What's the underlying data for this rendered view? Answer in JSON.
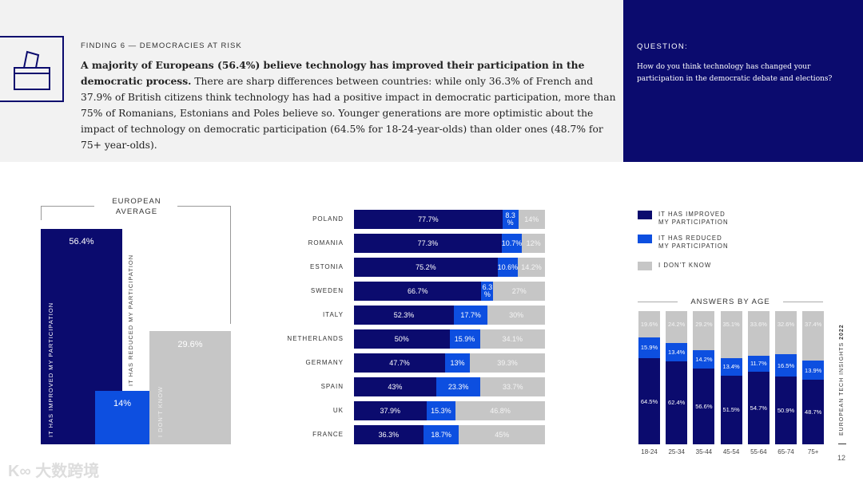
{
  "colors": {
    "improved": "#0b0b6e",
    "reduced": "#0d4fe0",
    "dont_know": "#c6c6c6"
  },
  "header": {
    "finding": "FINDING 6 — DEMOCRACIES AT RISK",
    "lead_bold": "A majority of Europeans (56.4%) believe technology has improved their participation in the democratic process.",
    "lead_rest": " There are sharp differences between countries: while only 36.3% of French and 37.9% of British citizens think technology has had a positive impact in democratic participation, more than 75% of Romanians, Estonians and Poles believe so. Younger generations are more optimistic about the impact of technology on democratic participation (64.5% for 18-24-year-olds) than older ones (48.7% for 75+ year-olds).",
    "icon": "ballot-box-icon"
  },
  "question": {
    "label": "QUESTION:",
    "text": "How do you think technology has changed your participation in the democratic debate and elections?"
  },
  "legend": [
    "IT HAS IMPROVED MY PARTICIPATION",
    "IT HAS REDUCED MY PARTICIPATION",
    "I DON'T KNOW"
  ],
  "chart_data": [
    {
      "type": "bar",
      "title": "EUROPEAN AVERAGE",
      "categories": [
        "IT HAS IMPROVED MY PARTICIPATION",
        "IT HAS REDUCED MY PARTICIPATION",
        "I DON'T KNOW"
      ],
      "values": [
        56.4,
        14,
        29.6
      ],
      "labels": [
        "56.4%",
        "14%",
        "29.6%"
      ]
    },
    {
      "type": "bar",
      "orientation": "horizontal-stacked",
      "categories": [
        "POLAND",
        "ROMANIA",
        "ESTONIA",
        "SWEDEN",
        "ITALY",
        "NETHERLANDS",
        "GERMANY",
        "SPAIN",
        "UK",
        "FRANCE"
      ],
      "series": [
        {
          "name": "IT HAS IMPROVED MY PARTICIPATION",
          "values": [
            77.7,
            77.3,
            75.2,
            66.7,
            52.3,
            50,
            47.7,
            43,
            37.9,
            36.3
          ],
          "labels": [
            "77.7%",
            "77.3%",
            "75.2%",
            "66.7%",
            "52.3%",
            "50%",
            "47.7%",
            "43%",
            "37.9%",
            "36.3%"
          ]
        },
        {
          "name": "IT HAS REDUCED MY PARTICIPATION",
          "values": [
            8.3,
            10.7,
            10.6,
            6.3,
            17.7,
            15.9,
            13,
            23.3,
            15.3,
            18.7
          ],
          "labels": [
            "8.3 %",
            "10.7%",
            "10.6%",
            "6.3 %",
            "17.7%",
            "15.9%",
            "13%",
            "23.3%",
            "15.3%",
            "18.7%"
          ]
        },
        {
          "name": "I DON'T KNOW",
          "values": [
            14,
            12,
            14.2,
            27,
            30,
            34.1,
            39.3,
            33.7,
            46.8,
            45
          ],
          "labels": [
            "14%",
            "12%",
            "14.2%",
            "27%",
            "30%",
            "34.1%",
            "39.3%",
            "33.7%",
            "46.8%",
            "45%"
          ]
        }
      ]
    },
    {
      "type": "bar",
      "orientation": "vertical-stacked",
      "title": "ANSWERS BY AGE",
      "categories": [
        "18-24",
        "25-34",
        "35-44",
        "45-54",
        "55-64",
        "65-74",
        "75+"
      ],
      "series": [
        {
          "name": "IT HAS IMPROVED MY PARTICIPATION",
          "values": [
            64.5,
            62.4,
            56.6,
            51.5,
            54.7,
            50.9,
            48.7
          ],
          "labels": [
            "64.5%",
            "62.4%",
            "56.6%",
            "51.5%",
            "54.7%",
            "50.9%",
            "48.7%"
          ]
        },
        {
          "name": "IT HAS REDUCED MY PARTICIPATION",
          "values": [
            15.9,
            13.4,
            14.2,
            13.4,
            11.7,
            16.5,
            13.9
          ],
          "labels": [
            "15.9%",
            "13.4%",
            "14.2%",
            "13.4%",
            "11.7%",
            "16.5%",
            "13.9%"
          ]
        },
        {
          "name": "I DON'T KNOW",
          "values": [
            19.6,
            24.2,
            29.2,
            35.1,
            33.6,
            32.6,
            37.4
          ],
          "labels": [
            "19.6%",
            "24.2%",
            "29.2%",
            "35.1%",
            "33.6%",
            "32.6%",
            "37.4%"
          ]
        }
      ]
    }
  ],
  "footer": {
    "side_title": "EUROPEAN TECH INSIGHTS",
    "side_year": "2022",
    "page": "12",
    "watermark": "大数跨境"
  }
}
